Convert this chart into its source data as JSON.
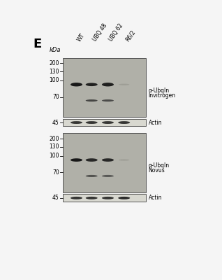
{
  "panel_label": "E",
  "col_labels": [
    "WT",
    "UBQ 48",
    "UBQ 62",
    "R6/2"
  ],
  "kda_label": "kDa",
  "background_color": "#f5f5f5",
  "blot_bg": "#b0b0a8",
  "actin_bg": "#d8d8d0",
  "marker_labels": [
    "200",
    "130",
    "100",
    "70"
  ],
  "actin_marker": "45",
  "label_right_1a": "α-UbqIn",
  "label_right_1b": "Invitrogen",
  "label_right_2a": "α-UbqIn",
  "label_right_2b": "Novus",
  "label_right_actin": "Actin",
  "band_dark": "#181818",
  "band_mid": "#2a2a2a",
  "band_faint": "#909088"
}
